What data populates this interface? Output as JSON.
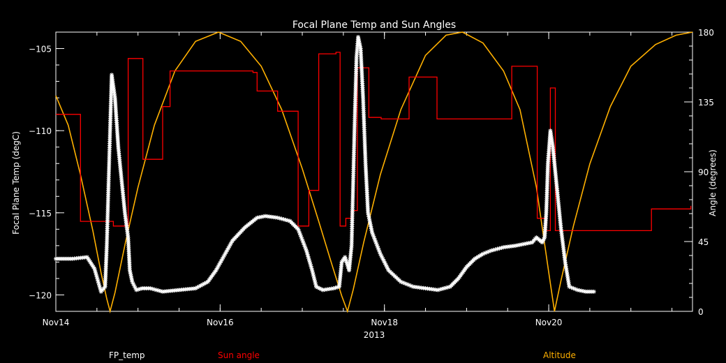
{
  "chart_data": {
    "type": "line",
    "title": "Focal Plane Temp and Sun Angles",
    "xlabel": "2013",
    "ylabel_left": "Focal Plane Temp (degC)",
    "ylabel_right": "Angle (degrees)",
    "x_unit": "days",
    "x_ticks": [
      {
        "label": "Nov14",
        "x": 14
      },
      {
        "label": "Nov16",
        "x": 16
      },
      {
        "label": "Nov18",
        "x": 18
      },
      {
        "label": "Nov20",
        "x": 20
      }
    ],
    "xlim": [
      14,
      21.75
    ],
    "ylim_left": [
      -121,
      -104
    ],
    "ylim_right": [
      0,
      180
    ],
    "y_ticks_left": [
      -105,
      -110,
      -115,
      -120
    ],
    "y_ticks_right": [
      0,
      45,
      90,
      135,
      180
    ],
    "grid": false,
    "series": [
      {
        "name": "FP_temp",
        "axis": "left",
        "color": "#ffffff",
        "marker": "asterisk",
        "points": [
          [
            14.0,
            -117.8
          ],
          [
            14.2,
            -117.8
          ],
          [
            14.38,
            -117.7
          ],
          [
            14.47,
            -118.4
          ],
          [
            14.55,
            -119.8
          ],
          [
            14.6,
            -119.5
          ],
          [
            14.62,
            -117.0
          ],
          [
            14.64,
            -113.5
          ],
          [
            14.66,
            -110.0
          ],
          [
            14.68,
            -106.6
          ],
          [
            14.72,
            -108.0
          ],
          [
            14.76,
            -111.0
          ],
          [
            14.8,
            -113.0
          ],
          [
            14.84,
            -115.0
          ],
          [
            14.88,
            -116.5
          ],
          [
            14.9,
            -118.5
          ],
          [
            14.93,
            -119.2
          ],
          [
            14.98,
            -119.7
          ],
          [
            15.05,
            -119.6
          ],
          [
            15.15,
            -119.6
          ],
          [
            15.3,
            -119.8
          ],
          [
            15.5,
            -119.7
          ],
          [
            15.7,
            -119.6
          ],
          [
            15.85,
            -119.2
          ],
          [
            15.95,
            -118.5
          ],
          [
            16.05,
            -117.6
          ],
          [
            16.15,
            -116.7
          ],
          [
            16.3,
            -115.9
          ],
          [
            16.45,
            -115.3
          ],
          [
            16.55,
            -115.2
          ],
          [
            16.7,
            -115.3
          ],
          [
            16.85,
            -115.5
          ],
          [
            16.95,
            -116.0
          ],
          [
            17.05,
            -117.3
          ],
          [
            17.12,
            -118.5
          ],
          [
            17.17,
            -119.5
          ],
          [
            17.25,
            -119.7
          ],
          [
            17.38,
            -119.6
          ],
          [
            17.45,
            -119.5
          ],
          [
            17.48,
            -118.0
          ],
          [
            17.52,
            -117.7
          ],
          [
            17.57,
            -118.5
          ],
          [
            17.6,
            -117.0
          ],
          [
            17.62,
            -113.0
          ],
          [
            17.64,
            -109.0
          ],
          [
            17.66,
            -105.5
          ],
          [
            17.68,
            -104.3
          ],
          [
            17.71,
            -105.0
          ],
          [
            17.74,
            -108.0
          ],
          [
            17.77,
            -112.0
          ],
          [
            17.8,
            -115.0
          ],
          [
            17.85,
            -116.2
          ],
          [
            17.95,
            -117.5
          ],
          [
            18.05,
            -118.5
          ],
          [
            18.2,
            -119.2
          ],
          [
            18.35,
            -119.5
          ],
          [
            18.5,
            -119.6
          ],
          [
            18.65,
            -119.7
          ],
          [
            18.8,
            -119.5
          ],
          [
            18.9,
            -119.0
          ],
          [
            19.0,
            -118.3
          ],
          [
            19.1,
            -117.8
          ],
          [
            19.2,
            -117.5
          ],
          [
            19.3,
            -117.3
          ],
          [
            19.45,
            -117.1
          ],
          [
            19.6,
            -117.0
          ],
          [
            19.8,
            -116.8
          ],
          [
            19.85,
            -116.5
          ],
          [
            19.92,
            -116.8
          ],
          [
            19.95,
            -116.5
          ],
          [
            19.97,
            -115.0
          ],
          [
            19.99,
            -112.0
          ],
          [
            20.02,
            -110.0
          ],
          [
            20.05,
            -111.0
          ],
          [
            20.1,
            -113.5
          ],
          [
            20.15,
            -116.0
          ],
          [
            20.2,
            -118.0
          ],
          [
            20.25,
            -119.5
          ],
          [
            20.35,
            -119.7
          ],
          [
            20.45,
            -119.8
          ],
          [
            20.55,
            -119.8
          ]
        ]
      },
      {
        "name": "Sun angle",
        "axis": "right",
        "color": "#ff0000",
        "points": [
          [
            14.0,
            127
          ],
          [
            14.3,
            127
          ],
          [
            14.3,
            58
          ],
          [
            14.7,
            58
          ],
          [
            14.7,
            55
          ],
          [
            14.88,
            55
          ],
          [
            14.88,
            163
          ],
          [
            15.06,
            163
          ],
          [
            15.06,
            98
          ],
          [
            15.3,
            98
          ],
          [
            15.3,
            132
          ],
          [
            15.39,
            132
          ],
          [
            15.39,
            155
          ],
          [
            16.4,
            155
          ],
          [
            16.4,
            154
          ],
          [
            16.45,
            154
          ],
          [
            16.45,
            142
          ],
          [
            16.7,
            142
          ],
          [
            16.7,
            129
          ],
          [
            16.95,
            129
          ],
          [
            16.95,
            55
          ],
          [
            17.08,
            55
          ],
          [
            17.08,
            78
          ],
          [
            17.2,
            78
          ],
          [
            17.2,
            166
          ],
          [
            17.41,
            166
          ],
          [
            17.41,
            167
          ],
          [
            17.46,
            167
          ],
          [
            17.46,
            55
          ],
          [
            17.53,
            55
          ],
          [
            17.53,
            60
          ],
          [
            17.6,
            60
          ],
          [
            17.6,
            65
          ],
          [
            17.67,
            65
          ],
          [
            17.67,
            157
          ],
          [
            17.81,
            157
          ],
          [
            17.81,
            125
          ],
          [
            17.96,
            125
          ],
          [
            17.96,
            124
          ],
          [
            18.3,
            124
          ],
          [
            18.3,
            151
          ],
          [
            18.64,
            151
          ],
          [
            18.64,
            124
          ],
          [
            19.55,
            124
          ],
          [
            19.55,
            158
          ],
          [
            19.86,
            158
          ],
          [
            19.86,
            60
          ],
          [
            19.97,
            60
          ],
          [
            19.97,
            52
          ],
          [
            20.02,
            52
          ],
          [
            20.02,
            144
          ],
          [
            20.08,
            144
          ],
          [
            20.08,
            52
          ],
          [
            21.25,
            52
          ],
          [
            21.25,
            66
          ],
          [
            21.73,
            66
          ],
          [
            21.73,
            68
          ]
        ]
      },
      {
        "name": "Altitude",
        "axis": "right",
        "color": "#ffb000",
        "points": [
          [
            14.0,
            139
          ],
          [
            14.15,
            120
          ],
          [
            14.3,
            88
          ],
          [
            14.45,
            52
          ],
          [
            14.55,
            25
          ],
          [
            14.62,
            8
          ],
          [
            14.66,
            0
          ],
          [
            14.72,
            12
          ],
          [
            14.85,
            45
          ],
          [
            15.0,
            80
          ],
          [
            15.2,
            120
          ],
          [
            15.45,
            155
          ],
          [
            15.7,
            174
          ],
          [
            15.98,
            180
          ],
          [
            16.25,
            174
          ],
          [
            16.5,
            158
          ],
          [
            16.75,
            130
          ],
          [
            17.0,
            92
          ],
          [
            17.2,
            58
          ],
          [
            17.35,
            32
          ],
          [
            17.48,
            10
          ],
          [
            17.55,
            0
          ],
          [
            17.62,
            14
          ],
          [
            17.75,
            45
          ],
          [
            17.95,
            88
          ],
          [
            18.2,
            130
          ],
          [
            18.5,
            165
          ],
          [
            18.75,
            178
          ],
          [
            18.95,
            180
          ],
          [
            19.2,
            173
          ],
          [
            19.45,
            155
          ],
          [
            19.65,
            130
          ],
          [
            19.85,
            80
          ],
          [
            20.0,
            25
          ],
          [
            20.07,
            0
          ],
          [
            20.15,
            20
          ],
          [
            20.3,
            55
          ],
          [
            20.5,
            95
          ],
          [
            20.75,
            132
          ],
          [
            21.0,
            158
          ],
          [
            21.3,
            172
          ],
          [
            21.55,
            178
          ],
          [
            21.75,
            180
          ]
        ]
      }
    ]
  }
}
